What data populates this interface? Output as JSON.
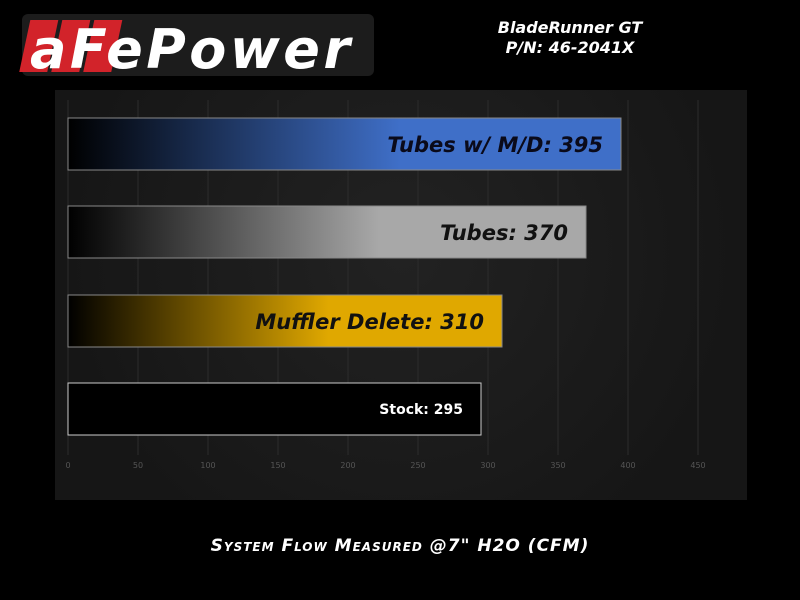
{
  "header": {
    "logo_text": "aFePower",
    "title_line1": "BladeRunner GT",
    "title_line2": "P/N: 46-2041X"
  },
  "chart_data": {
    "type": "bar",
    "orientation": "horizontal",
    "categories": [
      "Tubes w/ M/D",
      "Tubes",
      "Muffler Delete",
      "Stock"
    ],
    "values": [
      395,
      370,
      310,
      295
    ],
    "data_labels": [
      "Tubes w/ M/D: 395",
      "Tubes: 370",
      "Muffler Delete: 310",
      "Stock: 295"
    ],
    "colors": [
      "#3f6fc8",
      "#a8a8a8",
      "#e0a800",
      "#000000"
    ],
    "xlabel": "System Flow Measured @7\" H2O (CFM)",
    "xlim": [
      0,
      450
    ],
    "xticks": [
      0,
      50,
      100,
      150,
      200,
      250,
      300,
      350,
      400,
      450
    ],
    "grid": true
  }
}
